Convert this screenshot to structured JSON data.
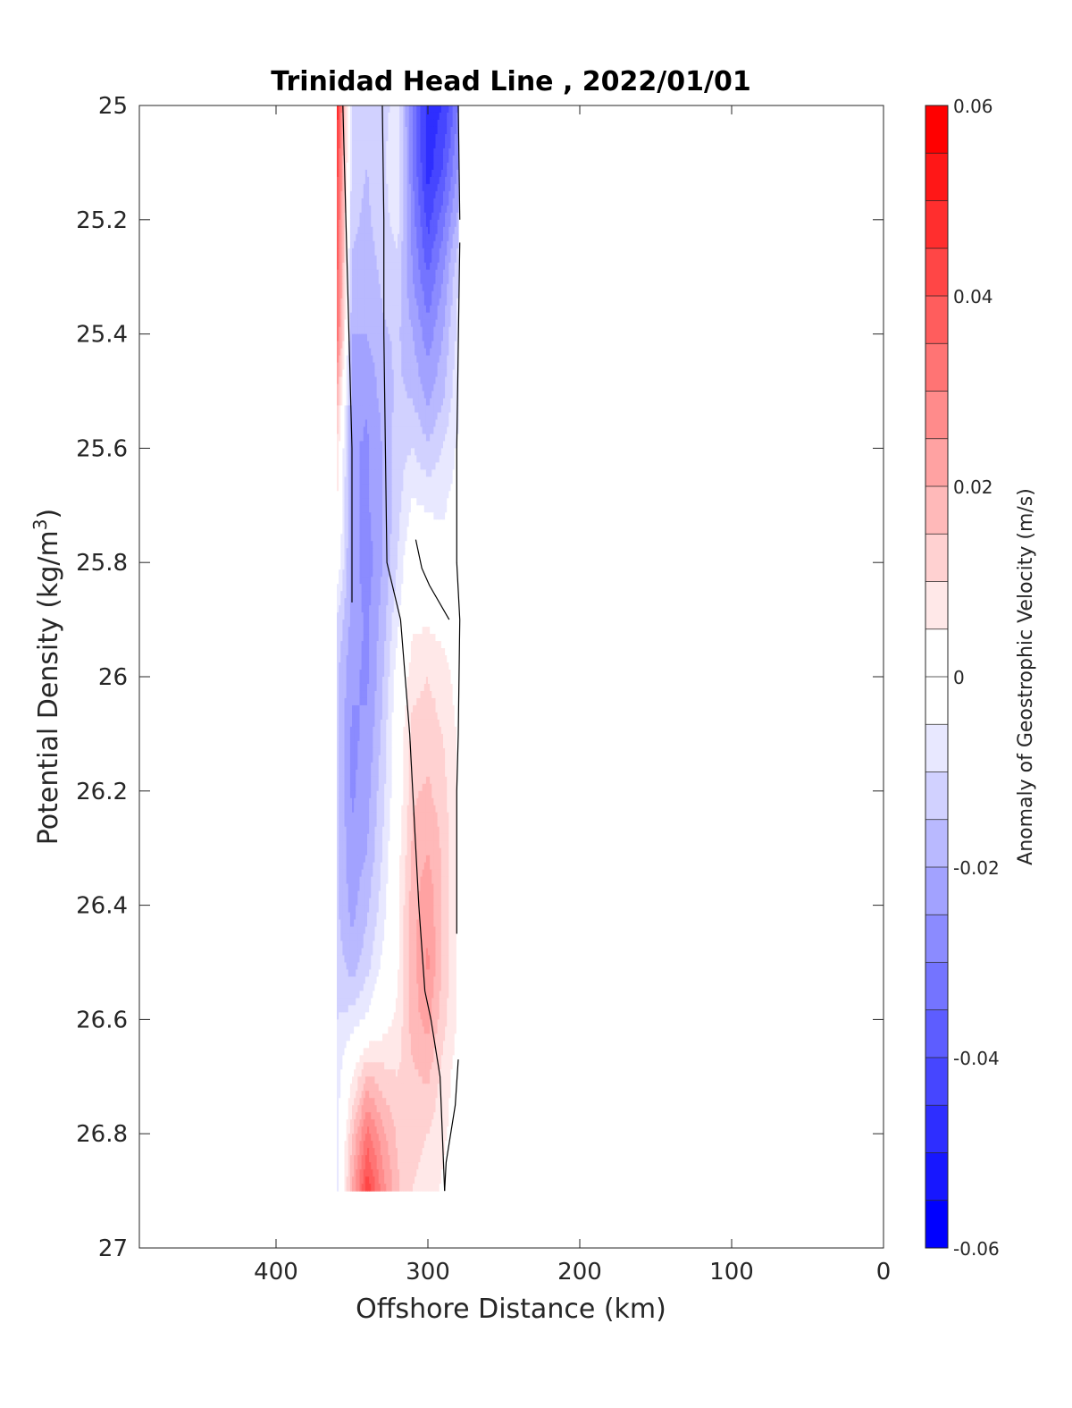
{
  "chart_data": {
    "type": "heatmap",
    "title": "Trinidad Head Line , 2022/01/01",
    "xlabel": "Offshore Distance (km)",
    "ylabel_main": "Potential Density (kg/m",
    "ylabel_sup": "3",
    "ylabel_close": ")",
    "xlim": [
      490,
      0
    ],
    "ylim": [
      25,
      27
    ],
    "xticks": [
      400,
      300,
      200,
      100,
      0
    ],
    "yticks": [
      25,
      25.2,
      25.4,
      25.6,
      25.8,
      26,
      26.2,
      26.4,
      26.6,
      26.8,
      27
    ],
    "ytick_labels": [
      "25",
      "25.2",
      "25.4",
      "25.6",
      "25.8",
      "26",
      "26.2",
      "26.4",
      "26.6",
      "26.8",
      "27"
    ],
    "xtick_labels": [
      "400",
      "300",
      "200",
      "100",
      "0"
    ],
    "colorbar": {
      "label": "Anomaly of Geostrophic Velocity (m/s)",
      "clim": [
        -0.06,
        0.06
      ],
      "levels": 24,
      "ticks": [
        0.06,
        0.04,
        0.02,
        0,
        -0.02,
        -0.04,
        -0.06
      ],
      "tick_labels": [
        "0.06",
        "0.04",
        "0.02",
        "0",
        "-0.02",
        "-0.04",
        "-0.06"
      ],
      "negative_color": "#0000ff",
      "positive_color": "#ff0000"
    },
    "x": [
      360,
      350,
      340,
      330,
      320,
      310,
      300,
      290,
      280
    ],
    "y": [
      25.0,
      25.1,
      25.2,
      25.3,
      25.4,
      25.5,
      25.6,
      25.7,
      25.8,
      25.9,
      26.0,
      26.1,
      26.2,
      26.3,
      26.4,
      26.5,
      26.6,
      26.7,
      26.8,
      26.9
    ],
    "z": [
      [
        0.05,
        -0.012,
        -0.014,
        -0.012,
        -0.008,
        -0.03,
        -0.048,
        -0.045,
        -0.03
      ],
      [
        0.045,
        -0.013,
        -0.015,
        -0.011,
        -0.006,
        -0.03,
        -0.048,
        -0.04,
        -0.025
      ],
      [
        0.04,
        -0.014,
        -0.016,
        -0.012,
        -0.008,
        -0.028,
        -0.042,
        -0.032,
        -0.018
      ],
      [
        0.038,
        -0.016,
        -0.018,
        -0.014,
        -0.012,
        -0.025,
        -0.035,
        -0.025,
        -0.01
      ],
      [
        0.035,
        -0.02,
        -0.02,
        -0.016,
        -0.014,
        -0.02,
        -0.028,
        -0.02,
        -0.008
      ],
      [
        0.02,
        -0.022,
        -0.024,
        -0.018,
        -0.014,
        -0.016,
        -0.022,
        -0.016,
        -0.006
      ],
      [
        0.01,
        -0.024,
        -0.026,
        -0.02,
        -0.012,
        -0.01,
        -0.014,
        -0.01,
        -0.004
      ],
      [
        0.006,
        -0.024,
        -0.026,
        -0.02,
        -0.012,
        -0.004,
        -0.006,
        -0.006,
        -0.002
      ],
      [
        0.0,
        -0.022,
        -0.028,
        -0.02,
        -0.01,
        0.002,
        0.0,
        -0.002,
        -0.001
      ],
      [
        -0.01,
        -0.022,
        -0.026,
        -0.018,
        -0.006,
        0.004,
        0.004,
        0.002,
        0.0
      ],
      [
        -0.014,
        -0.024,
        -0.026,
        -0.016,
        -0.002,
        0.008,
        0.01,
        0.008,
        0.002
      ],
      [
        -0.014,
        -0.026,
        -0.024,
        -0.014,
        0.0,
        0.012,
        0.012,
        0.01,
        0.004
      ],
      [
        -0.014,
        -0.026,
        -0.022,
        -0.012,
        0.0,
        0.014,
        0.016,
        0.012,
        0.004
      ],
      [
        -0.014,
        -0.024,
        -0.02,
        -0.01,
        0.002,
        0.016,
        0.02,
        0.014,
        0.004
      ],
      [
        -0.014,
        -0.022,
        -0.016,
        -0.008,
        0.004,
        0.018,
        0.024,
        0.014,
        0.004
      ],
      [
        -0.012,
        -0.018,
        -0.012,
        -0.004,
        0.004,
        0.018,
        0.026,
        0.014,
        0.004
      ],
      [
        -0.01,
        -0.008,
        -0.004,
        0.002,
        0.006,
        0.018,
        0.022,
        0.012,
        0.004
      ],
      [
        -0.008,
        0.004,
        0.016,
        0.012,
        0.01,
        0.014,
        0.016,
        0.008,
        0.002
      ],
      [
        -0.008,
        0.014,
        0.032,
        0.022,
        0.014,
        0.012,
        0.01,
        0.006,
        0.002
      ],
      [
        -0.008,
        0.02,
        0.044,
        0.028,
        0.016,
        0.01,
        0.008,
        0.004,
        0.002
      ]
    ],
    "zero_contours": [
      [
        [
          356,
          25.0
        ],
        [
          354,
          25.2
        ],
        [
          352,
          25.4
        ],
        [
          350,
          25.6
        ],
        [
          350,
          25.8
        ],
        [
          350,
          25.87
        ]
      ],
      [
        [
          330,
          25.0
        ],
        [
          329,
          25.2
        ],
        [
          329,
          25.4
        ],
        [
          328,
          25.6
        ],
        [
          327,
          25.8
        ],
        [
          318,
          25.9
        ],
        [
          315,
          26.0
        ],
        [
          312,
          26.1
        ],
        [
          310,
          26.2
        ],
        [
          306,
          26.4
        ],
        [
          302,
          26.55
        ],
        [
          298,
          26.6
        ],
        [
          292,
          26.7
        ],
        [
          289,
          26.9
        ]
      ],
      [
        [
          308,
          25.76
        ],
        [
          304,
          25.81
        ],
        [
          299,
          25.84
        ],
        [
          286,
          25.9
        ]
      ],
      [
        [
          280,
          25.0
        ],
        [
          279,
          25.2
        ]
      ],
      [
        [
          279,
          25.24
        ],
        [
          281,
          25.6
        ],
        [
          281,
          25.8
        ],
        [
          279,
          25.9
        ],
        [
          280,
          26.1
        ],
        [
          281,
          26.2
        ],
        [
          281,
          26.45
        ]
      ],
      [
        [
          280,
          26.67
        ],
        [
          282,
          26.75
        ],
        [
          288,
          26.85
        ],
        [
          289,
          26.9
        ]
      ]
    ]
  }
}
